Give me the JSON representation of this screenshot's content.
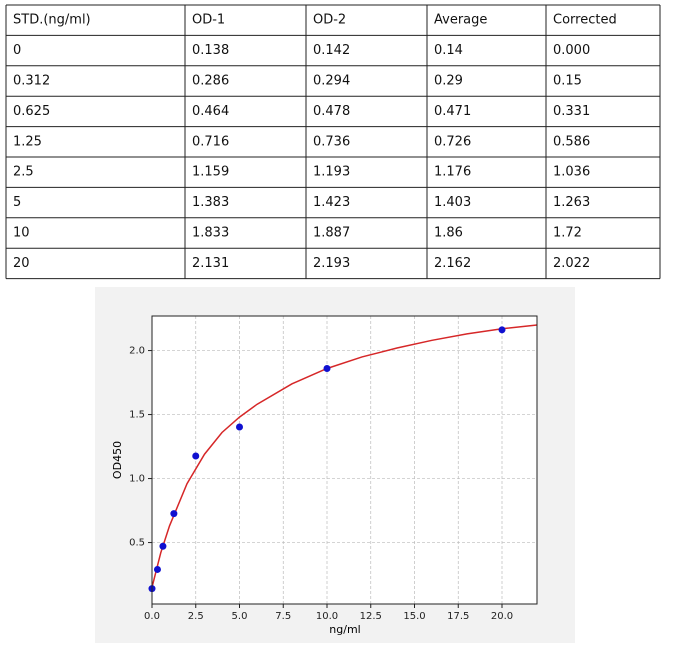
{
  "table": {
    "header": [
      "STD.(ng/ml)",
      "OD-1",
      "OD-2",
      "Average",
      "Corrected"
    ],
    "rows": [
      [
        "0",
        "0.138",
        "0.142",
        "0.14",
        "0.000"
      ],
      [
        "0.312",
        "0.286",
        "0.294",
        "0.29",
        "0.15"
      ],
      [
        "0.625",
        "0.464",
        "0.478",
        "0.471",
        "0.331"
      ],
      [
        "1.25",
        "0.716",
        "0.736",
        "0.726",
        "0.586"
      ],
      [
        "2.5",
        "1.159",
        "1.193",
        "1.176",
        "1.036"
      ],
      [
        "5",
        "1.383",
        "1.423",
        "1.403",
        "1.263"
      ],
      [
        "10",
        "1.833",
        "1.887",
        "1.86",
        "1.72"
      ],
      [
        "20",
        "2.131",
        "2.193",
        "2.162",
        "2.022"
      ]
    ]
  },
  "chart_data": {
    "type": "scatter",
    "xlabel": "ng/ml",
    "ylabel": "OD450",
    "xlim": [
      0,
      22
    ],
    "ylim": [
      0.02,
      2.27
    ],
    "xticks": [
      {
        "value": 0,
        "label": "0.0"
      },
      {
        "value": 2.5,
        "label": "2.5"
      },
      {
        "value": 5,
        "label": "5.0"
      },
      {
        "value": 7.5,
        "label": "7.5"
      },
      {
        "value": 10,
        "label": "10.0"
      },
      {
        "value": 12.5,
        "label": "12.5"
      },
      {
        "value": 15,
        "label": "15.0"
      },
      {
        "value": 17.5,
        "label": "17.5"
      },
      {
        "value": 20,
        "label": "20.0"
      }
    ],
    "yticks": [
      {
        "value": 0.5,
        "label": "0.5"
      },
      {
        "value": 1,
        "label": "1.0"
      },
      {
        "value": 1.5,
        "label": "1.5"
      },
      {
        "value": 2,
        "label": "2.0"
      }
    ],
    "grid": true,
    "series": [
      {
        "type": "line",
        "color": "#d62728",
        "x": [
          0,
          0.5,
          1,
          2,
          3,
          4,
          5,
          6,
          8,
          10,
          12,
          14,
          16,
          18,
          20,
          22
        ],
        "values": [
          0.15,
          0.42,
          0.63,
          0.96,
          1.19,
          1.36,
          1.48,
          1.58,
          1.74,
          1.86,
          1.95,
          2.02,
          2.08,
          2.13,
          2.17,
          2.2
        ]
      },
      {
        "type": "scatter",
        "color": "#1010d0",
        "x": [
          0,
          0.312,
          0.625,
          1.25,
          2.5,
          5,
          10,
          20
        ],
        "values": [
          0.14,
          0.29,
          0.471,
          0.726,
          1.176,
          1.403,
          1.86,
          2.162
        ]
      }
    ]
  }
}
